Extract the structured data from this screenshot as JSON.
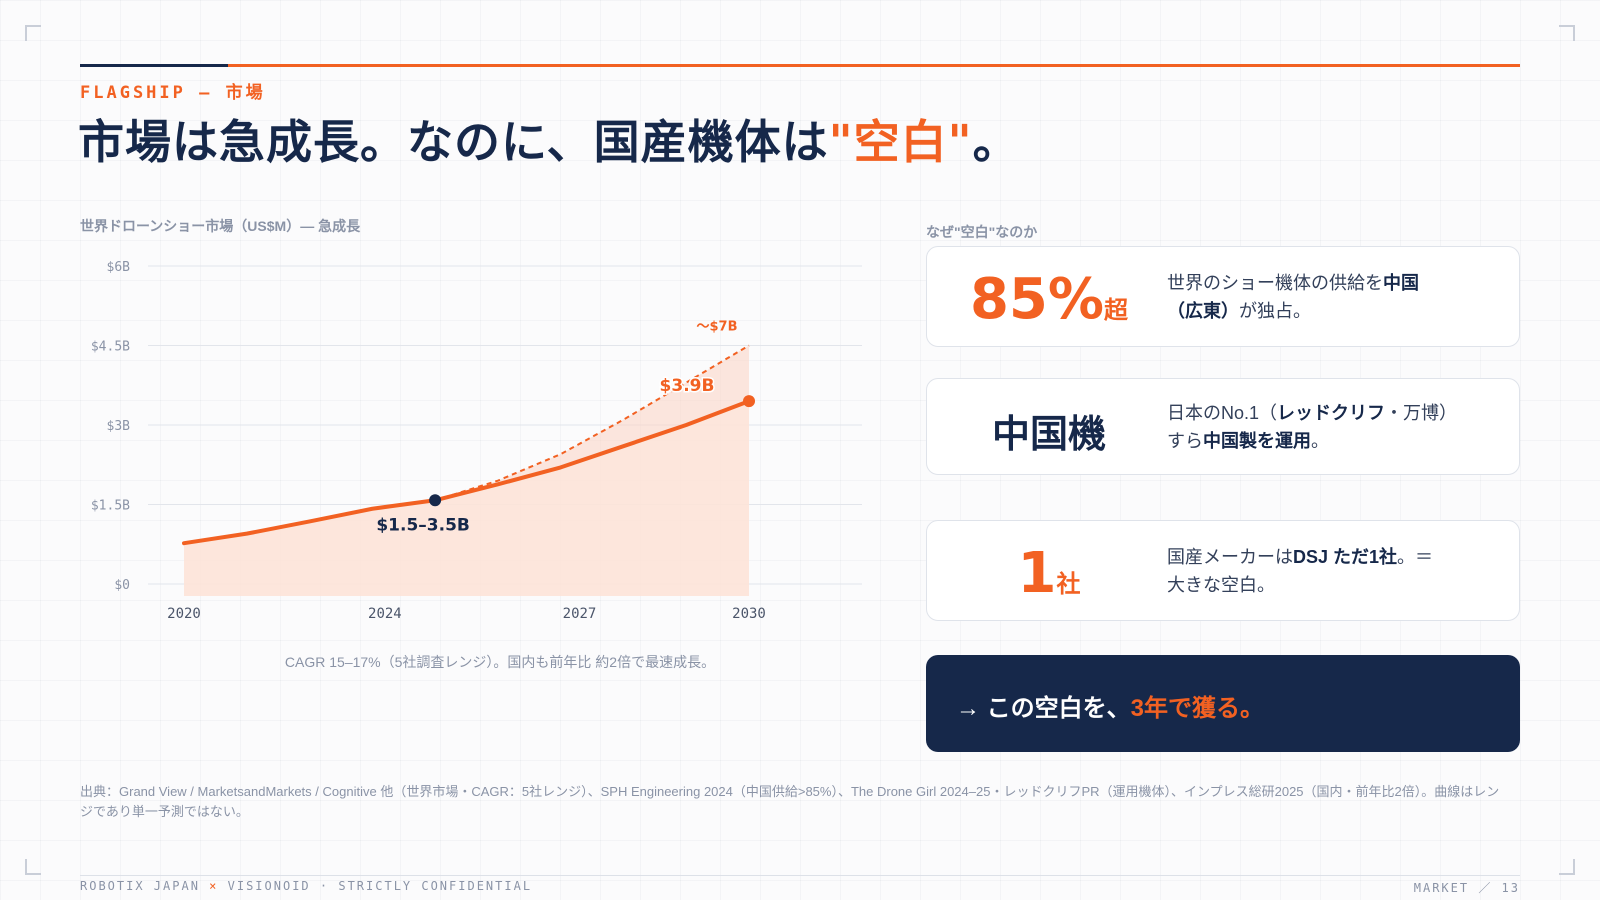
{
  "header": {
    "eyebrow": "FLAGSHIP — 市場",
    "title_main": "市場は急成長。なのに、国産機体は",
    "title_accent": "\"空白\"",
    "title_end": "。"
  },
  "chart_caption": "世界ドローンショー市場（US$M）— 急成長",
  "chart_data": {
    "type": "area",
    "title": "世界ドローンショー市場（US$M）— 急成長",
    "x_ticks": [
      "2020",
      "2024",
      "2027",
      "2030"
    ],
    "y_ticks": [
      "$6B",
      "$4.5B",
      "$3B",
      "$1.5B",
      "$0"
    ],
    "ylim": [
      0,
      6
    ],
    "xlim": [
      2020,
      2030.8
    ],
    "grid": true,
    "series": [
      {
        "values": [
          [
            2020,
            0.77
          ],
          [
            2021,
            0.95
          ],
          [
            2022,
            1.18
          ],
          [
            2023,
            1.42
          ],
          [
            2024,
            1.58
          ],
          [
            2025,
            1.88
          ],
          [
            2026,
            2.2
          ],
          [
            2027,
            2.6
          ],
          [
            2028,
            3.0
          ],
          [
            2029,
            3.45
          ]
        ],
        "color": "#f26122",
        "style": "solid"
      },
      {
        "values": [
          [
            2024,
            1.58
          ],
          [
            2025,
            1.95
          ],
          [
            2026,
            2.45
          ],
          [
            2027,
            3.1
          ],
          [
            2028,
            3.8
          ],
          [
            2029,
            4.5
          ]
        ],
        "color": "#f26122",
        "style": "dashed"
      }
    ],
    "band_upper": [
      [
        2024,
        1.58
      ],
      [
        2025,
        1.95
      ],
      [
        2026,
        2.45
      ],
      [
        2027,
        3.1
      ],
      [
        2028,
        3.8
      ],
      [
        2029,
        4.5
      ]
    ],
    "highlight_point": [
      2024,
      1.58
    ],
    "end_point": [
      2029,
      3.45
    ],
    "annotations": [
      {
        "text": "$1.5–3.5B",
        "color": "#16284a"
      },
      {
        "text": "$3.9B",
        "color": "#f26122"
      },
      {
        "text": "〜$7B",
        "color": "#f26122"
      }
    ]
  },
  "chart_note": "CAGR 15–17%（5社調査レンジ）。国内も前年比 約2倍で最速成長。",
  "side_caption": "なぜ\"空白\"なのか",
  "cards": [
    {
      "big": "85%",
      "unit": "超",
      "line1": "世界のショー機体の供給を",
      "line1_bold": "中国",
      "line2_bold": "（広東）",
      "line2": "が独占。"
    },
    {
      "big": "中国機",
      "line1": "日本のNo.1（",
      "line1_bold": "レッドクリフ",
      "line1_end": "・万博）",
      "line2": "すら",
      "line2_bold": "中国製を運用",
      "line2_end": "。"
    },
    {
      "big": "1",
      "unit": "社",
      "line1": "国産メーカーは",
      "line1_bold": "DSJ ただ1社",
      "line1_end": "。＝",
      "line2": "大きな空白。"
    }
  ],
  "cta": {
    "prefix": "→ この空白を、",
    "accent": "3年で獲る。"
  },
  "source": "出典：Grand View / MarketsandMarkets / Cognitive 他（世界市場・CAGR：5社レンジ）、SPH Engineering 2024（中国供給>85%）、The Drone Girl 2024–25・レッドクリフPR（運用機体）、インプレス総研2025（国内・前年比2倍）。曲線はレンジであり単一予測ではない。",
  "footer": {
    "left_a": "ROBOTIX JAPAN",
    "left_x": "×",
    "left_b": "VISIONOID",
    "left_c": "· STRICTLY CONFIDENTIAL",
    "right": "MARKET ／ 13"
  }
}
